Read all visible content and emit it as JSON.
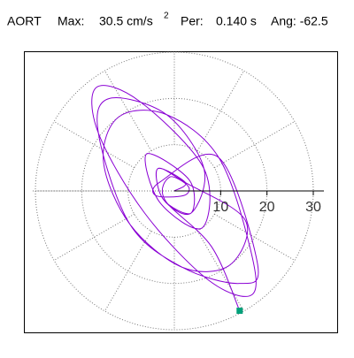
{
  "header": {
    "station": "AORT",
    "max_label": "Max:",
    "max_value": "30.5 cm/s",
    "max_unit_power": "2",
    "period": "Per:",
    "period_value": "0.140 s",
    "angle": "Ang: -62.5"
  },
  "chart_data": {
    "type": "particle-motion",
    "x": [
      0,
      2.4,
      -3.6,
      -2.4,
      3.6,
      3.2,
      -6,
      -3.2,
      6,
      6.4,
      -7.4,
      -16.8,
      -16.4,
      -6.4,
      7.4,
      16.8,
      16.4,
      9.6,
      -1.7,
      -12,
      -15.3,
      -9.6,
      1.7,
      12,
      15.3,
      2.4,
      -3.6,
      -2.4,
      3.6,
      6.4,
      -1.7,
      -14,
      -16.4,
      -9.6,
      1.7,
      14,
      18,
      9.6,
      -3,
      -4,
      2,
      3,
      -1,
      -2,
      8,
      14.1
    ],
    "y": [
      0,
      1.8,
      4.8,
      -1.8,
      -4.8,
      2.4,
      8,
      -2.4,
      -8,
      4.8,
      19.3,
      22.4,
      12.5,
      -4.8,
      -19.3,
      -22.4,
      -12.5,
      7.2,
      16.5,
      16,
      6.3,
      -7.2,
      -16.5,
      -16,
      -6.3,
      1.8,
      4.8,
      -1.8,
      -4.8,
      4.8,
      16.5,
      20,
      12.5,
      -7.2,
      -16.5,
      -20,
      -16,
      7.2,
      2,
      -1,
      -1,
      1,
      3,
      -2,
      -12,
      -25.9
    ],
    "color": "#8a00d4",
    "end_marker_color": "#00a07a",
    "rlim": [
      0,
      30
    ],
    "rticks": [
      10,
      20,
      30
    ],
    "grid": true
  }
}
